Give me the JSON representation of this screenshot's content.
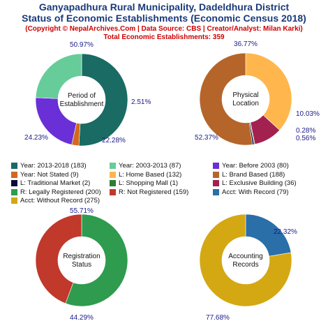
{
  "header": {
    "title_line1": "Ganyapadhura Rural Municipality, Dadeldhura District",
    "title_line2": "Status of Economic Establishments (Economic Census 2018)",
    "subtitle_line1": "(Copyright © NepalArchives.Com | Data Source: CBS | Creator/Analyst: Milan Karki)",
    "subtitle_line2": "Total Economic Establishments: 359"
  },
  "chart_data": [
    {
      "type": "pie",
      "center_label": [
        "Period of",
        "Establishment"
      ],
      "slices": [
        {
          "label": "Year: 2013-2018",
          "value": 183,
          "percent": "50.97%",
          "color": "#196b63"
        },
        {
          "label": "Year: Not Stated",
          "value": 9,
          "percent": "2.51%",
          "color": "#d2691e"
        },
        {
          "label": "Year: Before 2003",
          "value": 80,
          "percent": "22.28%",
          "color": "#6a2fd6"
        },
        {
          "label": "Year: 2003-2013",
          "value": 87,
          "percent": "24.23%",
          "color": "#66cc99"
        }
      ]
    },
    {
      "type": "pie",
      "center_label": [
        "Physical",
        "Location"
      ],
      "slices": [
        {
          "label": "L: Home Based",
          "value": 132,
          "percent": "36.77%",
          "color": "#ffb74d"
        },
        {
          "label": "L: Exclusive Building",
          "value": 36,
          "percent": "10.03%",
          "color": "#a3214f"
        },
        {
          "label": "L: Shopping Mall",
          "value": 1,
          "percent": "0.28%",
          "color": "#2e7d32"
        },
        {
          "label": "L: Traditional Market",
          "value": 2,
          "percent": "0.56%",
          "color": "#0b0b3b"
        },
        {
          "label": "L: Brand Based",
          "value": 188,
          "percent": "52.37%",
          "color": "#b5652a"
        }
      ]
    },
    {
      "type": "pie",
      "center_label": [
        "Registration",
        "Status"
      ],
      "slices": [
        {
          "label": "R: Legally Registered",
          "value": 200,
          "percent": "55.71%",
          "color": "#2e9b4e"
        },
        {
          "label": "R: Not Registered",
          "value": 159,
          "percent": "44.29%",
          "color": "#c0392b"
        }
      ]
    },
    {
      "type": "pie",
      "center_label": [
        "Accounting",
        "Records"
      ],
      "slices": [
        {
          "label": "Acct: With Record",
          "value": 79,
          "percent": "22.32%",
          "color": "#2a6fa8"
        },
        {
          "label": "Acct: Without Record",
          "value": 275,
          "percent": "77.68%",
          "color": "#d4a813"
        }
      ]
    }
  ],
  "legend": [
    {
      "text": "Year: 2013-2018 (183)",
      "color": "#196b63"
    },
    {
      "text": "Year: 2003-2013 (87)",
      "color": "#66cc99"
    },
    {
      "text": "Year: Before 2003 (80)",
      "color": "#6a2fd6"
    },
    {
      "text": "Year: Not Stated (9)",
      "color": "#d2691e"
    },
    {
      "text": "L: Home Based (132)",
      "color": "#ffb74d"
    },
    {
      "text": "L: Brand Based (188)",
      "color": "#b5652a"
    },
    {
      "text": "L: Traditional Market (2)",
      "color": "#0b0b3b"
    },
    {
      "text": "L: Shopping Mall (1)",
      "color": "#2e7d32"
    },
    {
      "text": "L: Exclusive Building (36)",
      "color": "#a3214f"
    },
    {
      "text": "R: Legally Registered (200)",
      "color": "#2e9b4e"
    },
    {
      "text": "R: Not Registered (159)",
      "color": "#c0392b"
    },
    {
      "text": "Acct: With Record (79)",
      "color": "#2a6fa8"
    },
    {
      "text": "Acct: Without Record (275)",
      "color": "#d4a813"
    }
  ]
}
